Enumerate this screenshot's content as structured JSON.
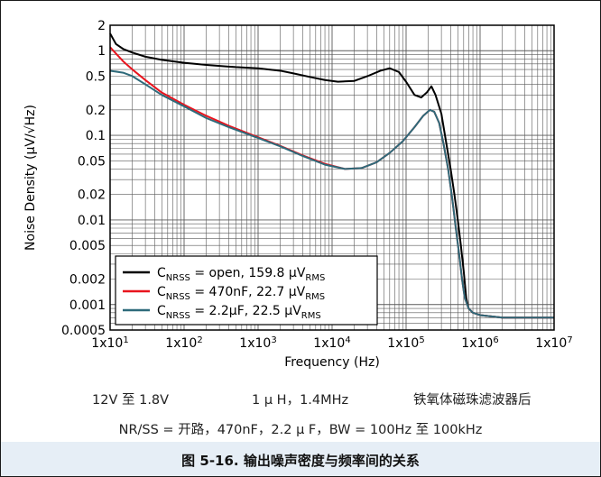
{
  "chart_data": {
    "type": "line",
    "xscale": "log",
    "yscale": "log",
    "xlim": [
      10,
      10000000
    ],
    "ylim": [
      0.0005,
      2
    ],
    "xlabel": "Frequency (Hz)",
    "ylabel": "Noise Density (µV/√Hz)",
    "x_ticks": [
      "1x10",
      "1x10",
      "1x10",
      "1x10",
      "1x10",
      "1x10",
      "1x10"
    ],
    "x_tick_exps": [
      "1",
      "2",
      "3",
      "4",
      "5",
      "6",
      "7"
    ],
    "y_ticks": [
      "2",
      "1",
      "0.5",
      "0.2",
      "0.1",
      "0.05",
      "0.02",
      "0.01",
      "0.005",
      "0.002",
      "0.001",
      "0.0005"
    ],
    "grid": true,
    "legend_position": "bottom-left",
    "series": [
      {
        "color": "#000000",
        "legend": {
          "main": "C",
          "sub": "NRSS",
          "text": " = open, 159.8 µV",
          "unit_sub": "RMS"
        },
        "points": [
          [
            10,
            1.6
          ],
          [
            12,
            1.2
          ],
          [
            15,
            1.05
          ],
          [
            20,
            0.95
          ],
          [
            30,
            0.85
          ],
          [
            50,
            0.78
          ],
          [
            100,
            0.72
          ],
          [
            200,
            0.68
          ],
          [
            500,
            0.64
          ],
          [
            1000,
            0.62
          ],
          [
            2000,
            0.58
          ],
          [
            3000,
            0.54
          ],
          [
            5000,
            0.49
          ],
          [
            8000,
            0.45
          ],
          [
            12000,
            0.43
          ],
          [
            20000,
            0.44
          ],
          [
            30000,
            0.5
          ],
          [
            45000,
            0.58
          ],
          [
            60000,
            0.62
          ],
          [
            80000,
            0.56
          ],
          [
            100000,
            0.43
          ],
          [
            130000,
            0.3
          ],
          [
            160000,
            0.28
          ],
          [
            190000,
            0.32
          ],
          [
            220000,
            0.38
          ],
          [
            250000,
            0.3
          ],
          [
            300000,
            0.18
          ],
          [
            350000,
            0.08
          ],
          [
            400000,
            0.04
          ],
          [
            450000,
            0.02
          ],
          [
            500000,
            0.01
          ],
          [
            550000,
            0.005
          ],
          [
            600000,
            0.0025
          ],
          [
            650000,
            0.0012
          ],
          [
            700000,
            0.0009
          ],
          [
            800000,
            0.0008
          ],
          [
            1000000,
            0.00075
          ],
          [
            2000000,
            0.0007
          ],
          [
            5000000,
            0.0007
          ],
          [
            10000000,
            0.0007
          ]
        ]
      },
      {
        "color": "#e8141e",
        "legend": {
          "main": "C",
          "sub": "NRSS",
          "text": " = 470nF, 22.7 µV",
          "unit_sub": "RMS"
        },
        "points": [
          [
            10,
            1.1
          ],
          [
            15,
            0.75
          ],
          [
            20,
            0.6
          ],
          [
            30,
            0.45
          ],
          [
            50,
            0.32
          ],
          [
            100,
            0.23
          ],
          [
            200,
            0.17
          ],
          [
            400,
            0.13
          ],
          [
            1000,
            0.095
          ],
          [
            2000,
            0.075
          ],
          [
            4000,
            0.058
          ],
          [
            8000,
            0.046
          ],
          [
            15000,
            0.04
          ],
          [
            25000,
            0.041
          ],
          [
            40000,
            0.048
          ],
          [
            60000,
            0.062
          ],
          [
            90000,
            0.085
          ],
          [
            130000,
            0.125
          ],
          [
            170000,
            0.17
          ],
          [
            210000,
            0.2
          ],
          [
            240000,
            0.19
          ],
          [
            280000,
            0.14
          ],
          [
            320000,
            0.08
          ],
          [
            370000,
            0.04
          ],
          [
            420000,
            0.018
          ],
          [
            470000,
            0.008
          ],
          [
            520000,
            0.004
          ],
          [
            570000,
            0.002
          ],
          [
            620000,
            0.0012
          ],
          [
            700000,
            0.0009
          ],
          [
            800000,
            0.0008
          ],
          [
            1000000,
            0.00075
          ],
          [
            2000000,
            0.0007
          ],
          [
            5000000,
            0.0007
          ],
          [
            10000000,
            0.0007
          ]
        ]
      },
      {
        "color": "#2e6a7a",
        "legend": {
          "main": "C",
          "sub": "NRSS",
          "text": " = 2.2µF, 22.5 µV",
          "unit_sub": "RMS"
        },
        "points": [
          [
            10,
            0.58
          ],
          [
            15,
            0.55
          ],
          [
            20,
            0.5
          ],
          [
            30,
            0.4
          ],
          [
            50,
            0.3
          ],
          [
            100,
            0.22
          ],
          [
            200,
            0.16
          ],
          [
            400,
            0.125
          ],
          [
            1000,
            0.093
          ],
          [
            2000,
            0.074
          ],
          [
            4000,
            0.057
          ],
          [
            8000,
            0.045
          ],
          [
            15000,
            0.04
          ],
          [
            25000,
            0.041
          ],
          [
            40000,
            0.048
          ],
          [
            60000,
            0.062
          ],
          [
            90000,
            0.085
          ],
          [
            130000,
            0.125
          ],
          [
            170000,
            0.17
          ],
          [
            210000,
            0.2
          ],
          [
            240000,
            0.19
          ],
          [
            280000,
            0.14
          ],
          [
            320000,
            0.08
          ],
          [
            370000,
            0.04
          ],
          [
            420000,
            0.018
          ],
          [
            470000,
            0.008
          ],
          [
            520000,
            0.004
          ],
          [
            570000,
            0.002
          ],
          [
            620000,
            0.0012
          ],
          [
            700000,
            0.0009
          ],
          [
            800000,
            0.0008
          ],
          [
            1000000,
            0.00075
          ],
          [
            2000000,
            0.0007
          ],
          [
            5000000,
            0.0007
          ],
          [
            10000000,
            0.0007
          ]
        ]
      }
    ]
  },
  "conditions": {
    "line1_a": "12V 至 1.8V",
    "line1_b": "1 µ H，1.4MHz",
    "line1_c": "铁氧体磁珠滤波器后",
    "line2": "NR/SS = 开路，470nF，2.2 µ F，BW = 100Hz 至 100kHz"
  },
  "caption": "图 5-16. 输出噪声密度与频率间的关系"
}
